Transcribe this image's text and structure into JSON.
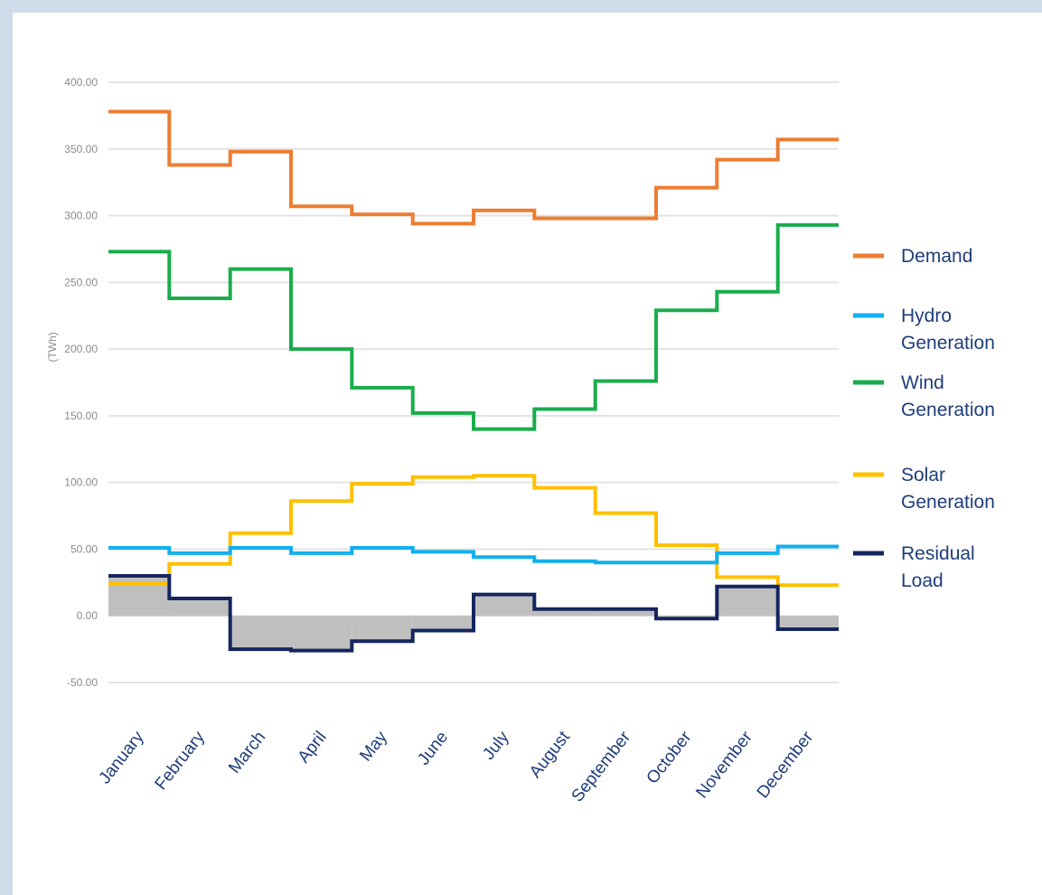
{
  "chart_data": {
    "type": "line",
    "step": true,
    "ylabel": "(TWh)",
    "xlabel": "",
    "ylim": [
      -50,
      400
    ],
    "yticks": [
      -50,
      0,
      50,
      100,
      150,
      200,
      250,
      300,
      350,
      400
    ],
    "ytick_labels": [
      "-50.00",
      "0.00",
      "50.00",
      "100.00",
      "150.00",
      "200.00",
      "250.00",
      "300.00",
      "350.00",
      "400.00"
    ],
    "grid": true,
    "legend_position": "right",
    "categories": [
      "January",
      "February",
      "March",
      "April",
      "May",
      "June",
      "July",
      "August",
      "September",
      "October",
      "November",
      "December"
    ],
    "series": [
      {
        "name": "Demand",
        "color": "#ed7d31",
        "values": [
          378,
          338,
          348,
          307,
          301,
          294,
          304,
          298,
          298,
          321,
          342,
          357
        ]
      },
      {
        "name": "Wind Generation",
        "color": "#1aad4b",
        "values": [
          273,
          238,
          260,
          200,
          171,
          152,
          140,
          155,
          176,
          229,
          243,
          293
        ]
      },
      {
        "name": "Solar Generation",
        "color": "#ffc000",
        "values": [
          24,
          39,
          62,
          86,
          99,
          104,
          105,
          96,
          77,
          53,
          29,
          23
        ]
      },
      {
        "name": "Hydro Generation",
        "color": "#12b0ee",
        "values": [
          51,
          47,
          51,
          47,
          51,
          48,
          44,
          41,
          40,
          40,
          47,
          52
        ]
      },
      {
        "name": "Residual Load",
        "color": "#15265e",
        "values": [
          30,
          13,
          -25,
          -26,
          -19,
          -11,
          16,
          5,
          5,
          -2,
          22,
          -10
        ],
        "fill": "#bfbfbf"
      }
    ],
    "legend": [
      {
        "lines": [
          "Demand"
        ],
        "color": "#ed7d31"
      },
      {
        "lines": [
          "Hydro",
          "Generation"
        ],
        "color": "#12b0ee"
      },
      {
        "lines": [
          "Wind",
          "Generation"
        ],
        "color": "#1aad4b"
      },
      {
        "lines": [
          "Solar",
          "Generation"
        ],
        "color": "#ffc000"
      },
      {
        "lines": [
          "Residual",
          "Load"
        ],
        "color": "#15265e"
      }
    ]
  }
}
